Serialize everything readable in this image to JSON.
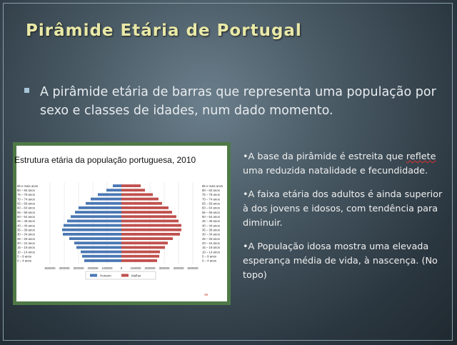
{
  "slide": {
    "title": "Pirâmide Etária de Portugal",
    "bullet": "A pirâmide etária de barras que representa uma população por sexo e classes de idades, num dado momento."
  },
  "notes": {
    "n1_lead": "•A base da pirâmide é estreita que ",
    "n1_word": "reflete",
    "n1_rest": " uma reduzida natalidade e fecundidade.",
    "n2": "•A faixa etária dos adultos  é ainda superior à dos jovens e  idosos, com tendência para diminuir.",
    "n3": "•A População idosa mostra uma elevada esperança média de vida, à nascença. (No topo)"
  },
  "chart_data": {
    "type": "bar",
    "title": "Estrutura etária da população portuguesa, 2010",
    "orientation": "horizontal-pyramid",
    "categories": [
      "0 – 4 anos",
      "5 – 9 anos",
      "10 – 14 anos",
      "15 – 19 anos",
      "20 – 24 anos",
      "25 – 29 anos",
      "30 – 34 anos",
      "35 – 39 anos",
      "40 – 44 anos",
      "45 – 49 anos",
      "50 – 54 anos",
      "55 – 59 anos",
      "60 – 64 anos",
      "65 – 69 anos",
      "70 – 74 anos",
      "75 – 79 anos",
      "80 – 84 anos",
      "85 e mais anos"
    ],
    "series": [
      {
        "name": "Homem",
        "color": "#4a77b4",
        "values": [
          260000,
          275000,
          285000,
          315000,
          330000,
          365000,
          410000,
          415000,
          405000,
          380000,
          355000,
          325000,
          300000,
          250000,
          215000,
          165000,
          105000,
          60000
        ]
      },
      {
        "name": "Mulher",
        "color": "#c0504d",
        "values": [
          250000,
          265000,
          270000,
          305000,
          325000,
          360000,
          410000,
          420000,
          420000,
          400000,
          385000,
          355000,
          330000,
          285000,
          260000,
          220000,
          165000,
          135000
        ]
      }
    ],
    "x_ticks": [
      "500000",
      "400000",
      "300000",
      "200000",
      "100000",
      "0",
      "100000",
      "200000",
      "300000",
      "400000",
      "500000"
    ],
    "xlim": [
      -500000,
      500000
    ],
    "legend": "bottom-center",
    "footer": "39"
  }
}
